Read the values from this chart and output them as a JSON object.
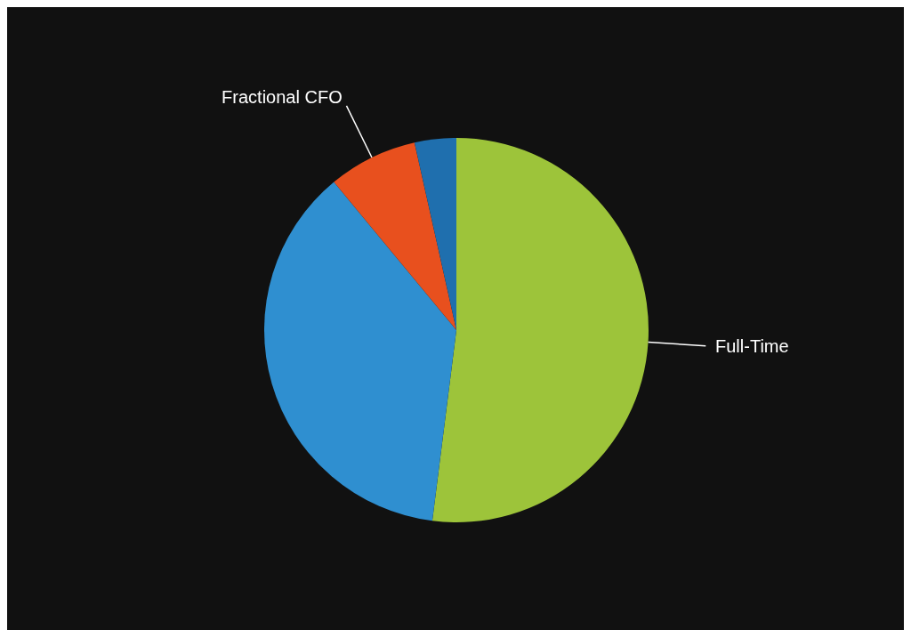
{
  "chart_data": {
    "type": "pie",
    "categories": [
      "Full-Time",
      null,
      "Fractional CFO",
      null
    ],
    "values": [
      52,
      37,
      7.5,
      3.5
    ],
    "colors": [
      "#9dc43a",
      "#2f8fd0",
      "#e8501e",
      "#1f6fae"
    ]
  }
}
